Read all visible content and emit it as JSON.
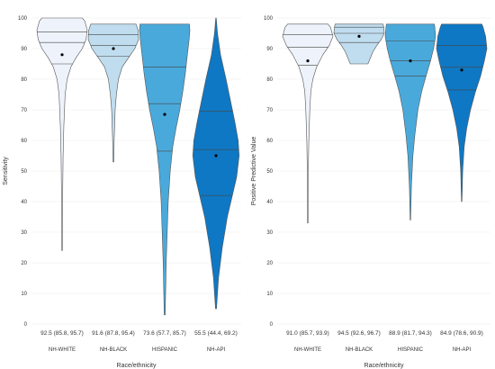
{
  "chart_data": [
    {
      "type": "violin",
      "xlabel": "Race/ethnicity",
      "ylabel": "Sensitivity",
      "ylim": [
        0,
        100
      ],
      "yticks": [
        0,
        10,
        20,
        30,
        40,
        50,
        60,
        70,
        80,
        90,
        100
      ],
      "grid": true,
      "legend": "none",
      "categories": [
        "NH-WHITE",
        "NH-BLACK",
        "HISPANIC",
        "NH-API"
      ],
      "stat_labels": [
        "92.5 (85.8, 95.7)",
        "91.6 (87.8, 95.4)",
        "73.6 (57.7, 85.7)",
        "55.5 (44.4, 69.2)"
      ],
      "colors": [
        "#eef3fb",
        "#c0ddef",
        "#4aa9db",
        "#0f78c4"
      ],
      "series": [
        {
          "category": "NH-WHITE",
          "min": 24,
          "max": 100,
          "mean": 88,
          "quantiles": [
            85,
            92,
            95.5
          ],
          "profile": [
            [
              24,
              0.01
            ],
            [
              40,
              0.02
            ],
            [
              55,
              0.04
            ],
            [
              65,
              0.07
            ],
            [
              75,
              0.12
            ],
            [
              80,
              0.2
            ],
            [
              84,
              0.35
            ],
            [
              87,
              0.55
            ],
            [
              90,
              0.8
            ],
            [
              93,
              0.95
            ],
            [
              96,
              1
            ],
            [
              99,
              0.9
            ],
            [
              100,
              0.8
            ]
          ]
        },
        {
          "category": "NH-BLACK",
          "min": 53,
          "max": 98,
          "mean": 90,
          "quantiles": [
            87.5,
            91,
            94.5
          ],
          "profile": [
            [
              53,
              0.02
            ],
            [
              60,
              0.03
            ],
            [
              70,
              0.07
            ],
            [
              75,
              0.12
            ],
            [
              80,
              0.2
            ],
            [
              84,
              0.35
            ],
            [
              87,
              0.6
            ],
            [
              90,
              0.85
            ],
            [
              93,
              1
            ],
            [
              96,
              0.98
            ],
            [
              98,
              0.9
            ]
          ]
        },
        {
          "category": "HISPANIC",
          "min": 3,
          "max": 98,
          "mean": 68.5,
          "quantiles": [
            56.5,
            72,
            84
          ],
          "profile": [
            [
              3,
              0.02
            ],
            [
              20,
              0.06
            ],
            [
              40,
              0.14
            ],
            [
              50,
              0.22
            ],
            [
              58,
              0.32
            ],
            [
              64,
              0.45
            ],
            [
              70,
              0.6
            ],
            [
              76,
              0.72
            ],
            [
              82,
              0.82
            ],
            [
              88,
              0.9
            ],
            [
              93,
              0.97
            ],
            [
              96,
              1
            ],
            [
              98,
              0.98
            ]
          ]
        },
        {
          "category": "NH-API",
          "min": 5,
          "max": 100,
          "mean": 55,
          "quantiles": [
            42,
            57,
            69.5
          ],
          "profile": [
            [
              5,
              0.02
            ],
            [
              15,
              0.1
            ],
            [
              25,
              0.25
            ],
            [
              35,
              0.45
            ],
            [
              42,
              0.65
            ],
            [
              48,
              0.82
            ],
            [
              55,
              0.92
            ],
            [
              60,
              0.88
            ],
            [
              66,
              0.75
            ],
            [
              72,
              0.6
            ],
            [
              80,
              0.4
            ],
            [
              88,
              0.18
            ],
            [
              95,
              0.06
            ],
            [
              100,
              0.01
            ]
          ]
        }
      ]
    },
    {
      "type": "violin",
      "xlabel": "Race/ethnicity",
      "ylabel": "Positive Predictive Value",
      "ylim": [
        0,
        100
      ],
      "yticks": [
        0,
        10,
        20,
        30,
        40,
        50,
        60,
        70,
        80,
        90,
        100
      ],
      "grid": true,
      "legend": "none",
      "categories": [
        "NH-WHITE",
        "NH-BLACK",
        "HISPANIC",
        "NH-API"
      ],
      "stat_labels": [
        "91.0 (85.7, 93.9)",
        "94.5 (92.6, 96.7)",
        "88.9 (81.7, 94.3)",
        "84.9 (78.6, 90.9)"
      ],
      "colors": [
        "#eef3fb",
        "#c0ddef",
        "#4aa9db",
        "#0f78c4"
      ],
      "series": [
        {
          "category": "NH-WHITE",
          "min": 33,
          "max": 98,
          "mean": 86,
          "quantiles": [
            84.5,
            90.5,
            94.5
          ],
          "profile": [
            [
              33,
              0.01
            ],
            [
              50,
              0.02
            ],
            [
              60,
              0.04
            ],
            [
              70,
              0.08
            ],
            [
              76,
              0.12
            ],
            [
              80,
              0.2
            ],
            [
              84,
              0.35
            ],
            [
              88,
              0.6
            ],
            [
              91,
              0.85
            ],
            [
              94,
              1
            ],
            [
              97,
              0.9
            ],
            [
              98,
              0.8
            ]
          ]
        },
        {
          "category": "NH-BLACK",
          "min": 85,
          "max": 98,
          "mean": 94,
          "quantiles": [
            92,
            95,
            97
          ],
          "profile": [
            [
              85,
              0.35
            ],
            [
              87,
              0.45
            ],
            [
              89,
              0.55
            ],
            [
              91,
              0.7
            ],
            [
              93,
              0.88
            ],
            [
              95,
              1
            ],
            [
              97,
              0.98
            ],
            [
              98,
              0.95
            ]
          ]
        },
        {
          "category": "HISPANIC",
          "min": 34,
          "max": 98,
          "mean": 86,
          "quantiles": [
            81,
            86,
            92.5
          ],
          "profile": [
            [
              34,
              0.01
            ],
            [
              45,
              0.04
            ],
            [
              55,
              0.1
            ],
            [
              62,
              0.18
            ],
            [
              70,
              0.3
            ],
            [
              76,
              0.45
            ],
            [
              81,
              0.62
            ],
            [
              86,
              0.8
            ],
            [
              90,
              0.92
            ],
            [
              94,
              1
            ],
            [
              97,
              0.97
            ],
            [
              98,
              0.95
            ]
          ]
        },
        {
          "category": "NH-API",
          "min": 40,
          "max": 98,
          "mean": 83,
          "quantiles": [
            76.5,
            84,
            91
          ],
          "profile": [
            [
              40,
              0.01
            ],
            [
              50,
              0.04
            ],
            [
              58,
              0.1
            ],
            [
              64,
              0.2
            ],
            [
              70,
              0.35
            ],
            [
              76,
              0.55
            ],
            [
              81,
              0.75
            ],
            [
              86,
              0.9
            ],
            [
              90,
              1
            ],
            [
              94,
              0.95
            ],
            [
              97,
              0.85
            ],
            [
              98,
              0.8
            ]
          ]
        }
      ]
    }
  ]
}
